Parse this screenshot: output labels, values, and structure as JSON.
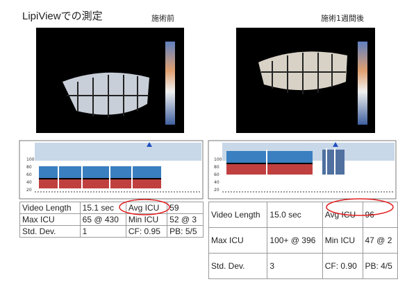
{
  "title": "LipiViewでの測定",
  "panels": [
    {
      "label": "施術前",
      "graph_labels": [
        "100",
        "80",
        "60",
        "40",
        "20"
      ],
      "table": {
        "rows": [
          [
            "Video Length",
            "15.1 sec",
            "Avg ICU",
            "59"
          ],
          [
            "Max ICU",
            "65 @ 430",
            "Min ICU",
            "52 @ 3"
          ],
          [
            "Std. Dev.",
            "1",
            "CF: 0.95",
            "PB: 5/5"
          ]
        ]
      }
    },
    {
      "label": "施術1週間後",
      "graph_labels": [
        "100",
        "80",
        "60",
        "40",
        "20"
      ],
      "table": {
        "rows": [
          [
            "Video Length",
            "15.0 sec",
            "Avg ICU",
            "96"
          ],
          [
            "Max ICU",
            "100+ @ 396",
            "Min ICU",
            "47 @ 2"
          ],
          [
            "Std. Dev.",
            "3",
            "CF: 0.90",
            "PB: 4/5"
          ]
        ]
      }
    }
  ]
}
